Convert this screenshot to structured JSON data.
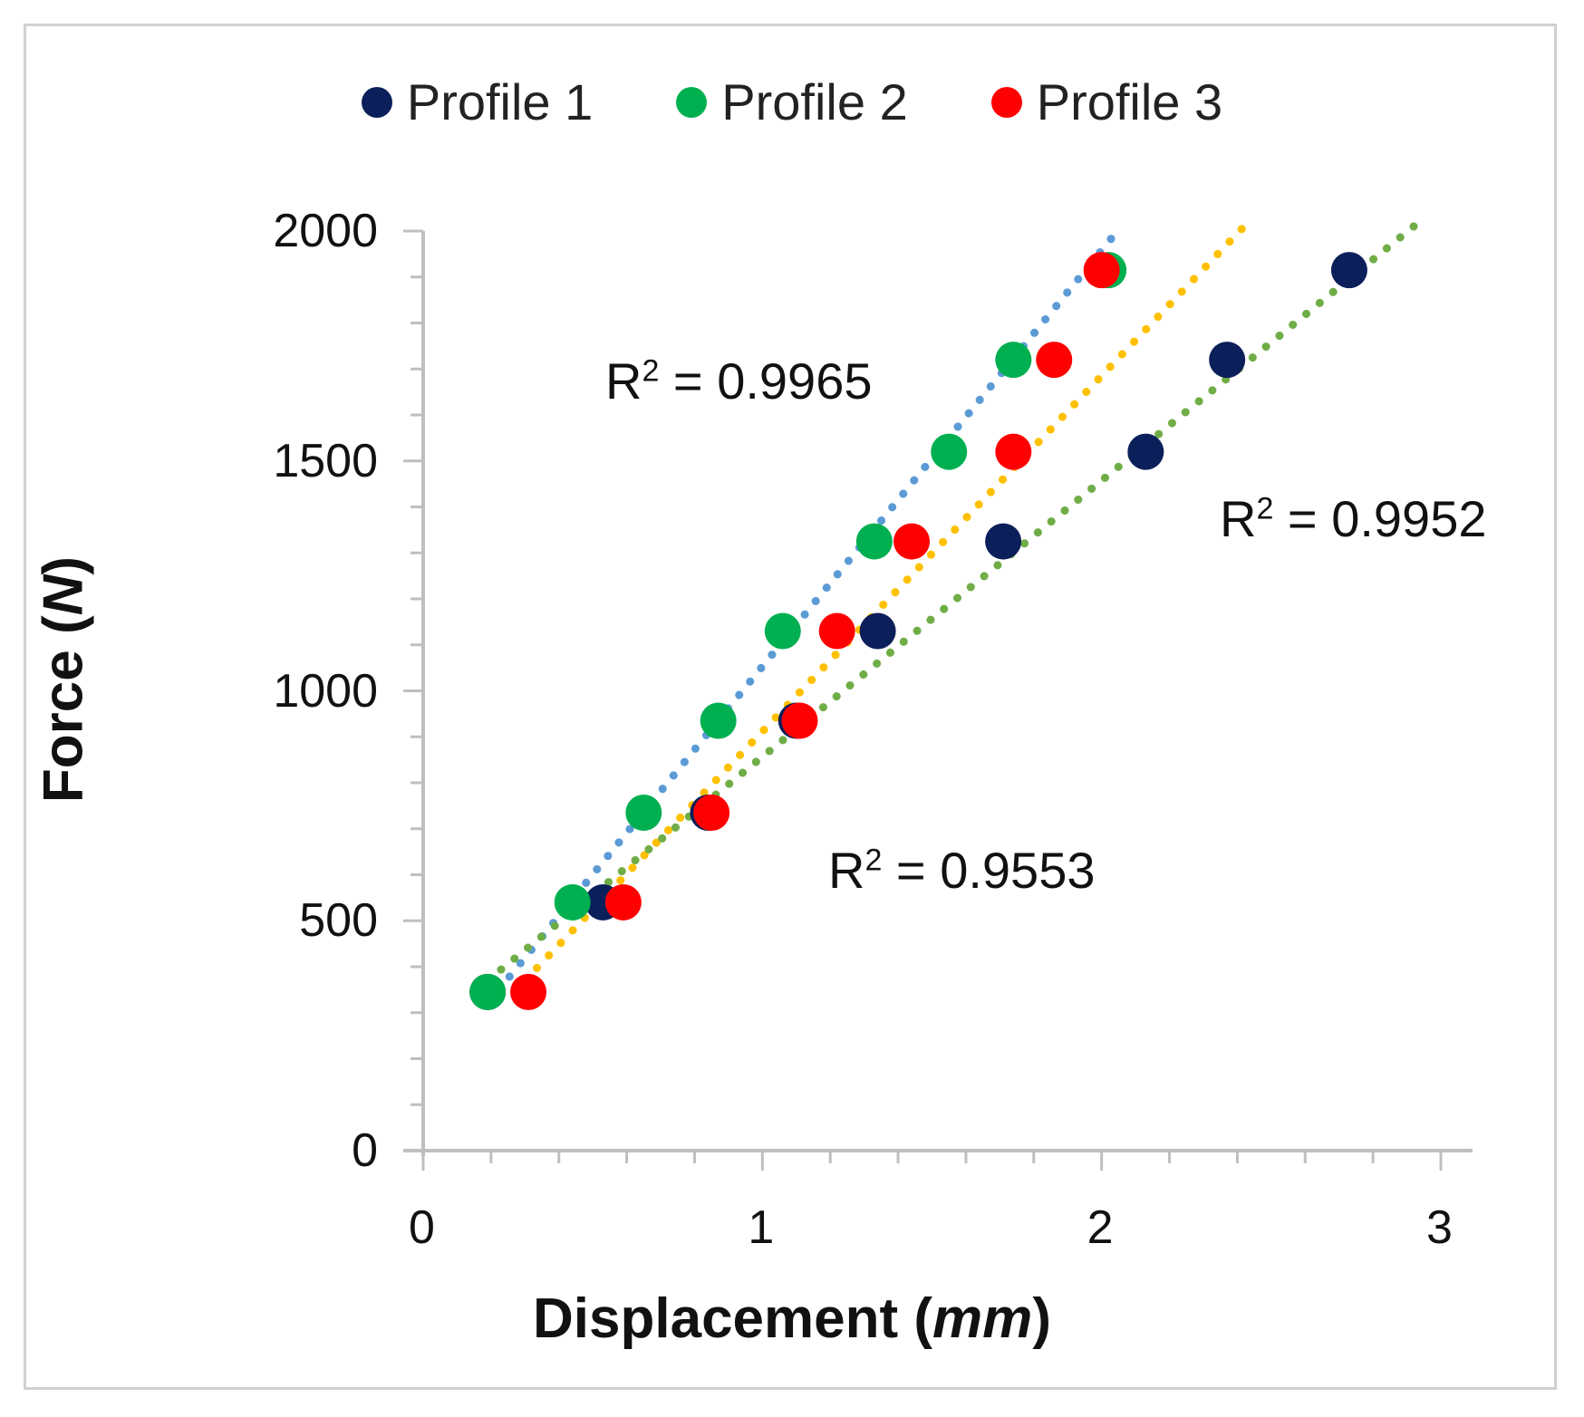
{
  "chart_data": {
    "type": "scatter",
    "title": "",
    "xlabel_main": "Displacement (",
    "xlabel_unit": "mm",
    "xlabel_end": ")",
    "ylabel_main": "Force (",
    "ylabel_unit": "N",
    "ylabel_end": ")",
    "xlim": [
      0,
      3
    ],
    "ylim": [
      0,
      2000
    ],
    "xticks": [
      0,
      1,
      2,
      3
    ],
    "yticks": [
      0,
      500,
      1000,
      1500,
      2000
    ],
    "grid": false,
    "legend_position": "top",
    "series": [
      {
        "name": "Profile 1",
        "color": "#0b1f5a",
        "x": [
          0.19,
          0.53,
          0.84,
          1.1,
          1.34,
          1.71,
          2.13,
          2.37,
          2.73
        ],
        "y": [
          345,
          540,
          735,
          935,
          1130,
          1325,
          1520,
          1720,
          1915
        ]
      },
      {
        "name": "Profile 2",
        "color": "#00b050",
        "x": [
          0.19,
          0.44,
          0.65,
          0.87,
          1.06,
          1.33,
          1.55,
          1.74,
          2.02
        ],
        "y": [
          345,
          540,
          735,
          935,
          1130,
          1325,
          1520,
          1720,
          1915
        ]
      },
      {
        "name": "Profile 3",
        "color": "#ff0000",
        "x": [
          0.31,
          0.59,
          0.85,
          1.11,
          1.22,
          1.44,
          1.74,
          1.86,
          2.0
        ],
        "y": [
          345,
          540,
          735,
          935,
          1130,
          1325,
          1520,
          1720,
          1915
        ]
      }
    ],
    "trendlines": [
      {
        "series": "Profile 2",
        "color": "#5b9bd5",
        "x_start": 0.19,
        "x_end": 2.03,
        "y_start": 320,
        "y_end": 1985,
        "r2_label": "R² = 0.9965"
      },
      {
        "series": "Profile 3",
        "color": "#ffc000",
        "x_start": 0.3,
        "x_end": 2.42,
        "y_start": 370,
        "y_end": 2010,
        "r2_label": "R² = 0.9952"
      },
      {
        "series": "Profile 1",
        "color": "#70ad47",
        "x_start": 0.19,
        "x_end": 2.92,
        "y_start": 370,
        "y_end": 2010,
        "r2_label": "R² = 0.9553"
      }
    ],
    "annotations": {
      "r2_a": {
        "prefix": "R",
        "exp": "2",
        "value": " = 0.9965"
      },
      "r2_b": {
        "prefix": "R",
        "exp": "2",
        "value": " = 0.9952"
      },
      "r2_c": {
        "prefix": "R",
        "exp": "2",
        "value": " = 0.9553"
      }
    }
  }
}
